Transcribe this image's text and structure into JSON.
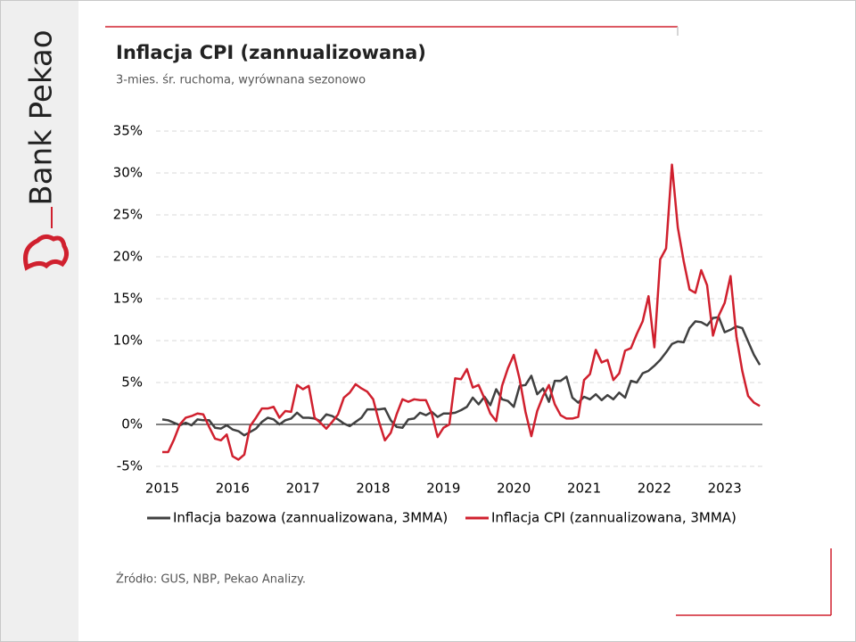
{
  "chart_data": {
    "type": "line",
    "brand": "Bank Pekao",
    "title": "Inflacja CPI (zannualizowana)",
    "subtitle": "3-mies. śr. ruchoma,  wyrównana  sezonowo",
    "source": "Źródło: GUS, NBP, Pekao Analizy.",
    "categories": [
      "2015",
      null,
      null,
      null,
      null,
      null,
      null,
      null,
      null,
      null,
      null,
      null,
      "2016",
      null,
      null,
      null,
      null,
      null,
      null,
      null,
      null,
      null,
      null,
      null,
      "2017",
      null,
      null,
      null,
      null,
      null,
      null,
      null,
      null,
      null,
      null,
      null,
      "2018",
      null,
      null,
      null,
      null,
      null,
      null,
      null,
      null,
      null,
      null,
      null,
      "2019",
      null,
      null,
      null,
      null,
      null,
      null,
      null,
      null,
      null,
      null,
      null,
      "2020",
      null,
      null,
      null,
      null,
      null,
      null,
      null,
      null,
      null,
      null,
      null,
      "2021",
      null,
      null,
      null,
      null,
      null,
      null,
      null,
      null,
      null,
      null,
      null,
      "2022",
      null,
      null,
      null,
      null,
      null,
      null,
      null,
      null,
      null,
      null,
      null,
      "2023",
      null,
      null,
      null,
      null,
      null,
      null
    ],
    "series": [
      {
        "name": "Inflacja bazowa (zannualizowana, 3MMA)",
        "color": "#404040",
        "values": [
          0.6,
          0.5,
          0.2,
          -0.1,
          0.2,
          -0.1,
          0.6,
          0.5,
          0.5,
          -0.4,
          -0.5,
          -0.1,
          -0.6,
          -0.8,
          -1.3,
          -0.9,
          -0.5,
          0.3,
          0.8,
          0.6,
          0.0,
          0.5,
          0.7,
          1.4,
          0.8,
          0.8,
          0.7,
          0.4,
          1.2,
          1.0,
          0.6,
          0.1,
          -0.2,
          0.3,
          0.8,
          1.8,
          1.8,
          1.8,
          1.9,
          0.5,
          -0.3,
          -0.4,
          0.6,
          0.7,
          1.4,
          1.1,
          1.5,
          0.9,
          1.3,
          1.3,
          1.4,
          1.7,
          2.1,
          3.2,
          2.4,
          3.3,
          2.3,
          4.2,
          3.0,
          2.8,
          2.1,
          4.6,
          4.7,
          5.8,
          3.6,
          4.3,
          2.7,
          5.2,
          5.2,
          5.7,
          3.2,
          2.6,
          3.3,
          3.0,
          3.6,
          2.9,
          3.5,
          3.0,
          3.8,
          3.2,
          5.2,
          5.0,
          6.1,
          6.4,
          7.0,
          7.7,
          8.6,
          9.6,
          9.9,
          9.8,
          11.5,
          12.3,
          12.2,
          11.8,
          12.7,
          12.8,
          11.0,
          11.3,
          11.7,
          11.5,
          9.9,
          8.3,
          7.1
        ]
      },
      {
        "name": "Inflacja CPI (zannualizowana, 3MMA)",
        "color": "#d0202e",
        "values": [
          -3.3,
          -3.3,
          -1.8,
          0.0,
          0.8,
          1.0,
          1.3,
          1.2,
          -0.3,
          -1.7,
          -1.9,
          -1.2,
          -3.8,
          -4.2,
          -3.6,
          -0.2,
          0.8,
          1.9,
          1.9,
          2.1,
          0.8,
          1.6,
          1.5,
          4.7,
          4.2,
          4.6,
          0.8,
          0.2,
          -0.5,
          0.3,
          1.2,
          3.2,
          3.8,
          4.8,
          4.3,
          3.9,
          3.0,
          0.3,
          -1.9,
          -1.0,
          1.2,
          3.0,
          2.7,
          3.0,
          2.9,
          2.9,
          1.3,
          -1.5,
          -0.4,
          0.0,
          5.5,
          5.4,
          6.6,
          4.4,
          4.7,
          3.1,
          1.3,
          0.4,
          4.6,
          6.7,
          8.3,
          5.4,
          1.5,
          -1.4,
          1.6,
          3.4,
          4.7,
          2.4,
          1.1,
          0.7,
          0.7,
          0.9,
          5.3,
          6.0,
          8.9,
          7.4,
          7.7,
          5.3,
          6.1,
          8.8,
          9.1,
          10.8,
          12.3,
          15.3,
          9.2,
          19.7,
          21.0,
          31.0,
          23.5,
          19.5,
          16.1,
          15.7,
          18.4,
          16.6,
          10.6,
          13.0,
          14.5,
          17.7,
          10.5,
          6.4,
          3.4,
          2.6,
          2.2
        ]
      }
    ],
    "ylim": [
      -5,
      35
    ],
    "yticks": [
      {
        "value": -5,
        "label": "-5%"
      },
      {
        "value": 0,
        "label": "0%"
      },
      {
        "value": 5,
        "label": "5%"
      },
      {
        "value": 10,
        "label": "10%"
      },
      {
        "value": 15,
        "label": "15%"
      },
      {
        "value": 20,
        "label": "20%"
      },
      {
        "value": 25,
        "label": "25%"
      },
      {
        "value": 30,
        "label": "30%"
      },
      {
        "value": 35,
        "label": "35%"
      }
    ],
    "grid": true,
    "legend": "bottom"
  }
}
